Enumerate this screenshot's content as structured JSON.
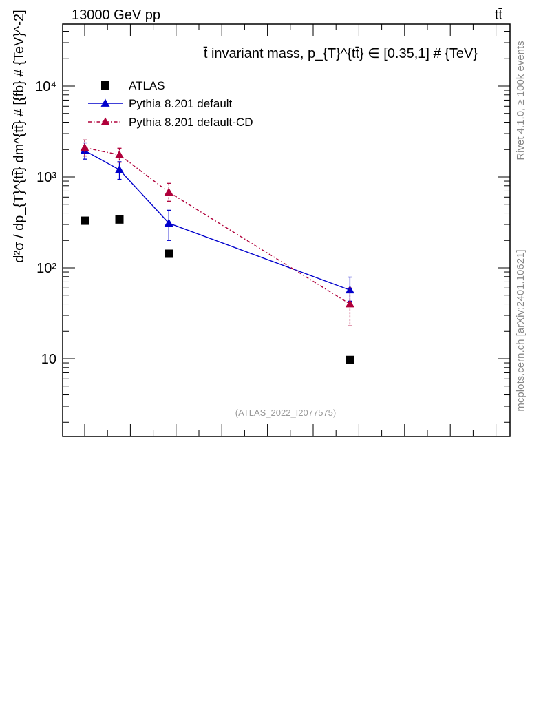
{
  "header": {
    "left": "13000 GeV pp",
    "right": "tt̄"
  },
  "side_labels": {
    "rivet": "Rivet 4.1.0, ≥ 100k events",
    "source": "mcplots.cern.ch [arXiv:2401.10621]"
  },
  "colors": {
    "data": "#000000",
    "default": "#0000cc",
    "default_cd": "#b0003a",
    "watermark": "#999999"
  },
  "chart_data": {
    "type": "line",
    "title": "t̄ invariant mass, p_{T}^{tt̄} ∈ [0.35,1] # {TeV}",
    "watermark": "(ATLAS_2022_I2077575)",
    "ylabel": "d²σ / dp_{T}^{tt̄} dm^{tt̄} # [{fb} # {TeV}^-2]",
    "xlabel": "",
    "yscale": "log",
    "ylim": [
      1.9,
      50000
    ],
    "xlim": [
      0.0,
      3.0
    ],
    "y_ticks": [
      {
        "value": 10,
        "label": "10"
      },
      {
        "value": 100,
        "label": "10²"
      },
      {
        "value": 1000,
        "label": "10³"
      },
      {
        "value": 10000,
        "label": "10⁴"
      }
    ],
    "legend_position": "top-left",
    "series": [
      {
        "name": "ATLAS",
        "style": "markers",
        "marker": "square",
        "color": "#000000",
        "x": [
          0.25,
          0.63,
          1.17,
          3.15
        ],
        "y": [
          330,
          340,
          143,
          9.7
        ]
      },
      {
        "name": "Pythia 8.201 default",
        "style": "solid",
        "marker": "triangle",
        "color": "#0000cc",
        "x": [
          0.25,
          0.63,
          1.17,
          3.15
        ],
        "y": [
          1950,
          1200,
          310,
          57
        ],
        "err_low": [
          380,
          260,
          110,
          14
        ],
        "err_high": [
          420,
          270,
          120,
          22
        ]
      },
      {
        "name": "Pythia 8.201 default-CD",
        "style": "dashdot",
        "marker": "triangle",
        "color": "#b0003a",
        "x": [
          0.25,
          0.63,
          1.17,
          3.15
        ],
        "y": [
          2100,
          1750,
          680,
          40
        ],
        "err_low": [
          400,
          300,
          140,
          17
        ],
        "err_high": [
          450,
          320,
          170,
          20
        ]
      }
    ]
  }
}
